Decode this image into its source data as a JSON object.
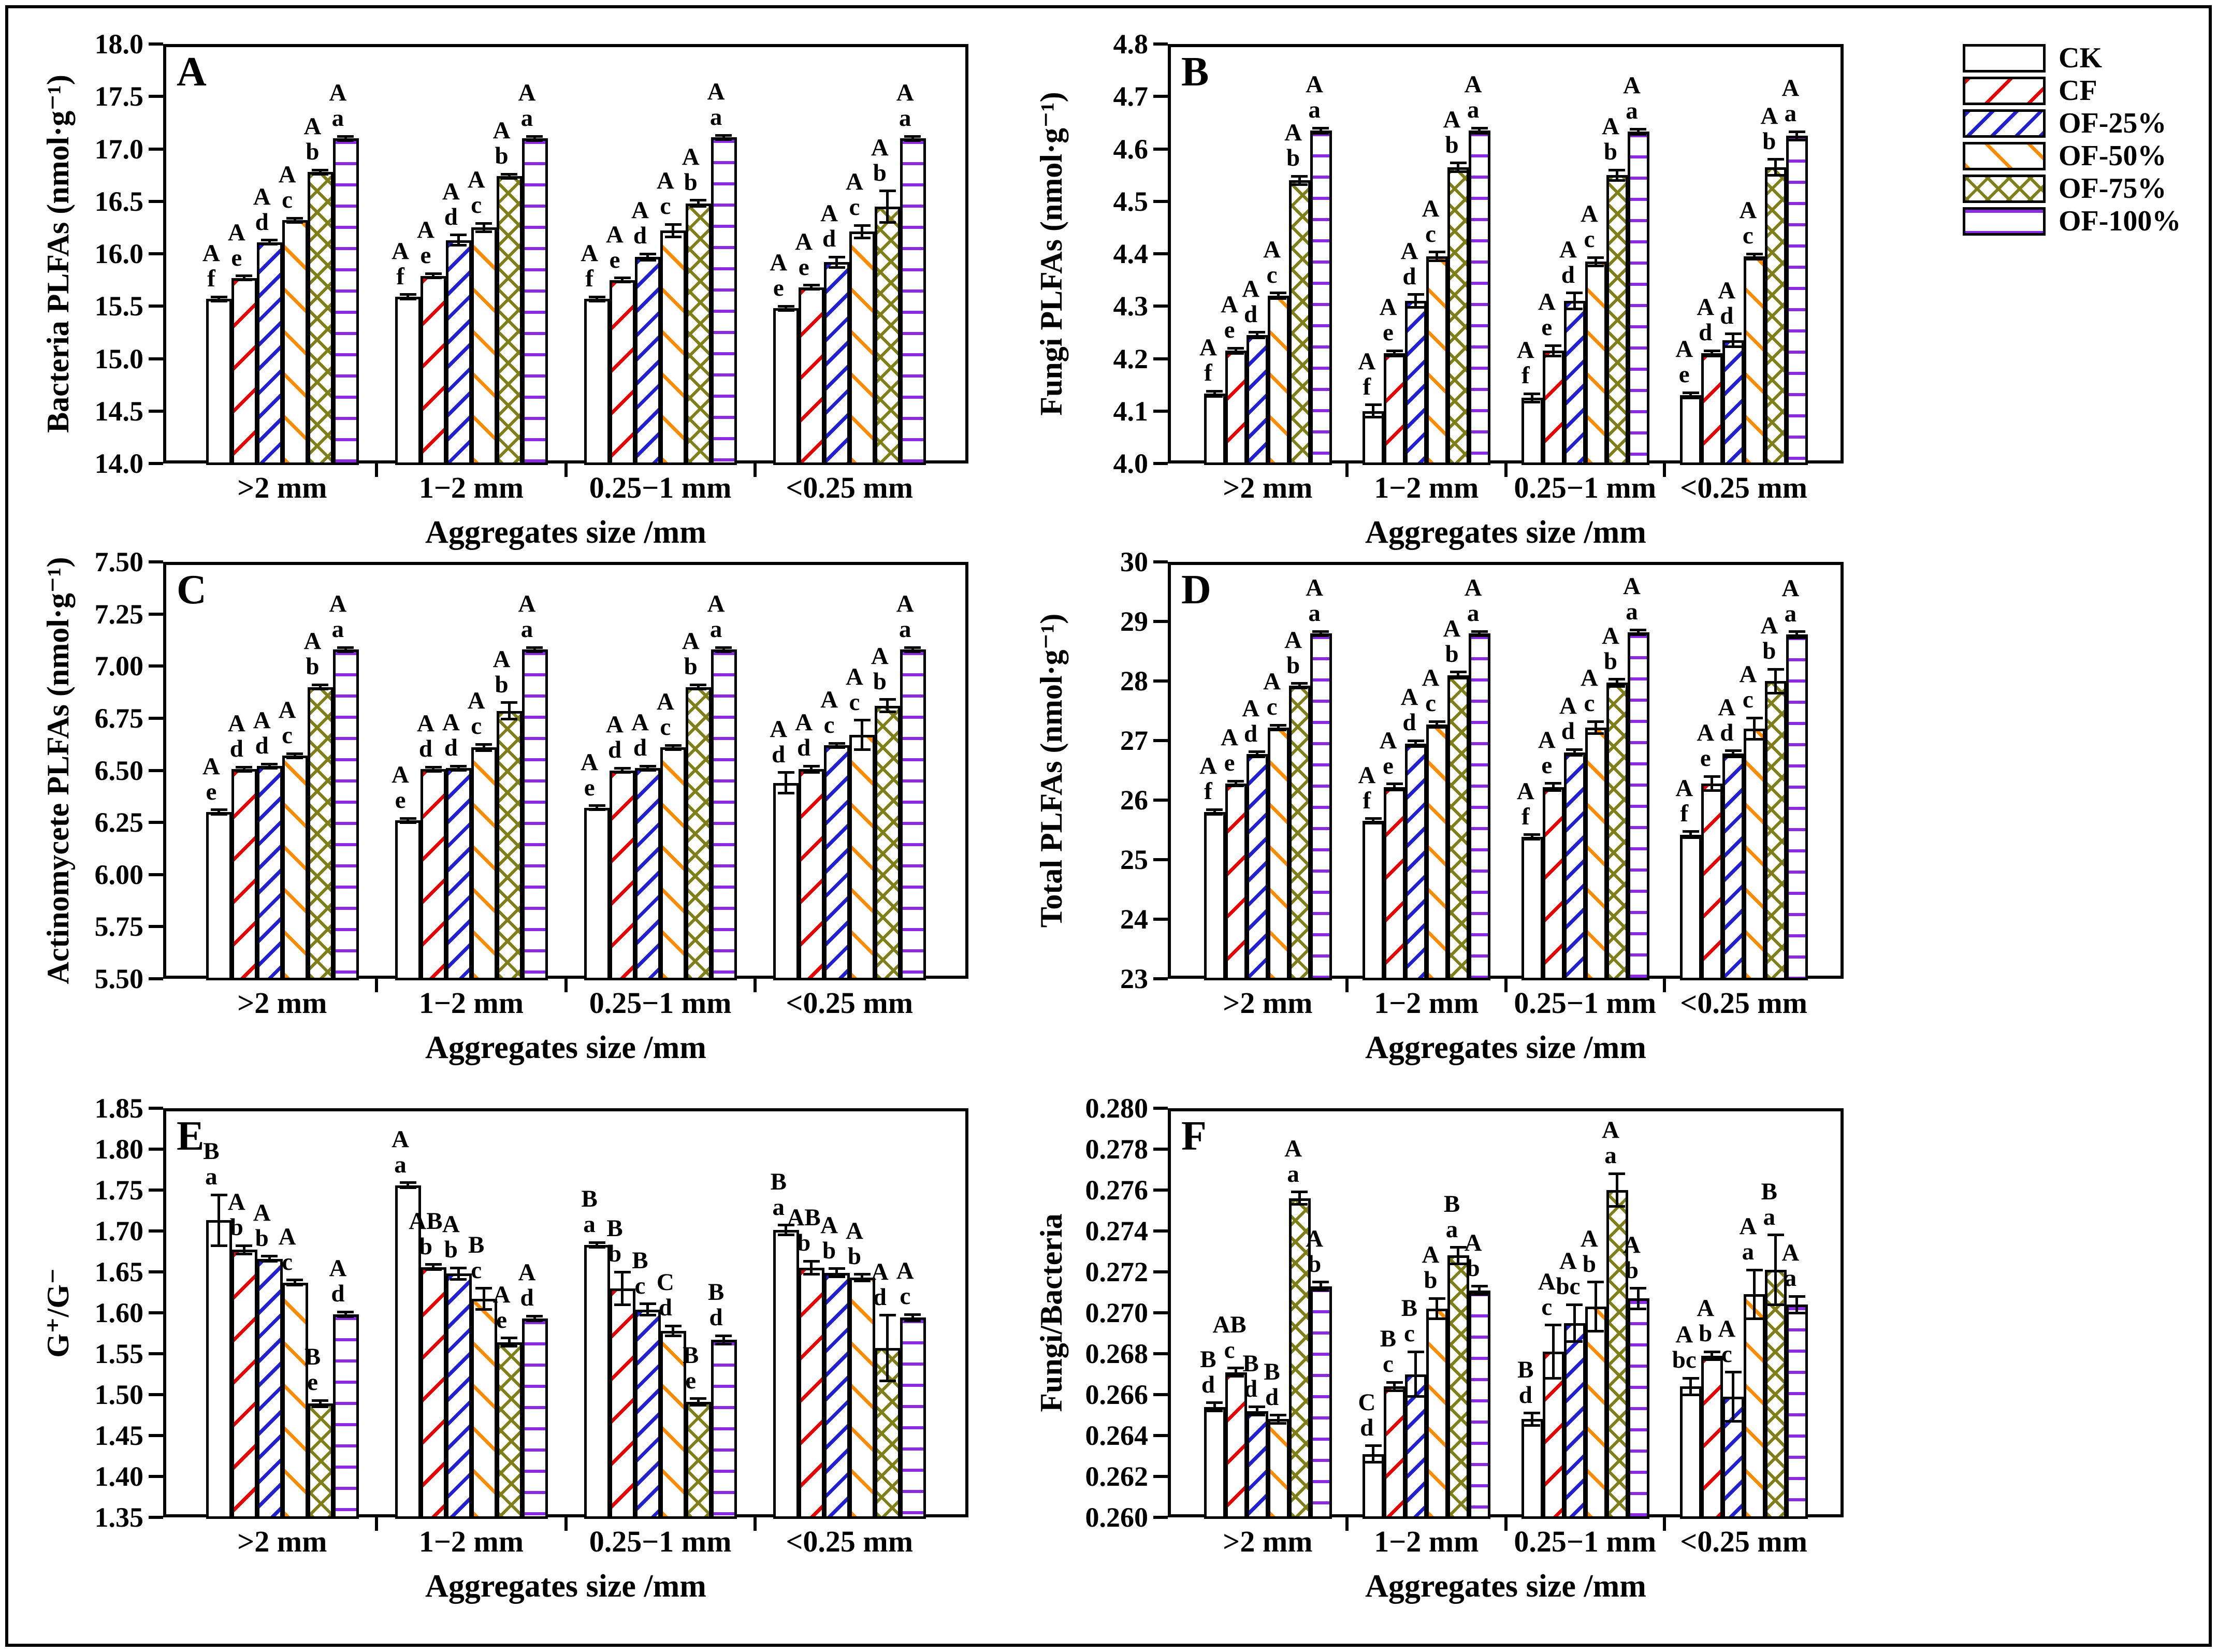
{
  "figure": {
    "xlabel": "Aggregates size /mm",
    "categories": [
      ">2 mm",
      "1−2 mm",
      "0.25−1 mm",
      "<0.25 mm"
    ],
    "background": "#ffffff",
    "border_color": "#000000"
  },
  "legend": {
    "items": [
      {
        "label": "CK",
        "pattern": "plain",
        "color": "#000000"
      },
      {
        "label": "CF",
        "pattern": "diag-up",
        "color": "#e60000"
      },
      {
        "label": "OF-25%",
        "pattern": "diag-up-dense",
        "color": "#2020d0"
      },
      {
        "label": "OF-50%",
        "pattern": "diag-down",
        "color": "#ff8c00"
      },
      {
        "label": "OF-75%",
        "pattern": "crosshatch",
        "color": "#7f7f1a"
      },
      {
        "label": "OF-100%",
        "pattern": "hlines",
        "color": "#8a2be2"
      }
    ]
  },
  "chart_data": [
    {
      "type": "bar",
      "title": "A",
      "ylabel": "Bacteria PLFAs (nmol·g⁻¹)",
      "ylim": [
        14.0,
        18.0
      ],
      "yticks": [
        "14.0",
        "14.5",
        "15.0",
        "15.5",
        "16.0",
        "16.5",
        "17.0",
        "17.5",
        "18.0"
      ],
      "series": [
        {
          "name": "CK",
          "values": [
            15.57,
            15.59,
            15.57,
            15.48
          ],
          "errors": [
            0.02,
            0.02,
            0.02,
            0.02
          ],
          "sig": [
            "A f",
            "A f",
            "A f",
            "A e"
          ]
        },
        {
          "name": "CF",
          "values": [
            15.77,
            15.79,
            15.75,
            15.68
          ],
          "errors": [
            0.02,
            0.02,
            0.02,
            0.02
          ],
          "sig": [
            "A e",
            "A e",
            "A e",
            "A e"
          ]
        },
        {
          "name": "OF-25%",
          "values": [
            16.11,
            16.13,
            15.97,
            15.92
          ],
          "errors": [
            0.02,
            0.05,
            0.03,
            0.05
          ],
          "sig": [
            "A d",
            "A d",
            "A d",
            "A d"
          ]
        },
        {
          "name": "OF-50%",
          "values": [
            16.32,
            16.25,
            16.22,
            16.21
          ],
          "errors": [
            0.02,
            0.04,
            0.06,
            0.06
          ],
          "sig": [
            "A c",
            "A c",
            "A c",
            "A c"
          ]
        },
        {
          "name": "OF-75%",
          "values": [
            16.78,
            16.74,
            16.48,
            16.45
          ],
          "errors": [
            0.02,
            0.02,
            0.03,
            0.15
          ],
          "sig": [
            "A b",
            "A b",
            "A b",
            "A b"
          ]
        },
        {
          "name": "OF-100%",
          "values": [
            17.1,
            17.1,
            17.11,
            17.1
          ],
          "errors": [
            0.01,
            0.01,
            0.01,
            0.01
          ],
          "sig": [
            "A a",
            "A a",
            "A a",
            "A a"
          ]
        }
      ]
    },
    {
      "type": "bar",
      "title": "B",
      "ylabel": "Fungi PLFAs (nmol·g⁻¹)",
      "ylim": [
        4.0,
        4.8
      ],
      "yticks": [
        "4.0",
        "4.1",
        "4.2",
        "4.3",
        "4.4",
        "4.5",
        "4.6",
        "4.7",
        "4.8"
      ],
      "series": [
        {
          "name": "CK",
          "values": [
            4.133,
            4.1,
            4.125,
            4.13
          ],
          "errors": [
            0.005,
            0.012,
            0.008,
            0.005
          ],
          "sig": [
            "A f",
            "A f",
            "A f",
            "A e"
          ]
        },
        {
          "name": "CF",
          "values": [
            4.215,
            4.21,
            4.215,
            4.21
          ],
          "errors": [
            0.005,
            0.005,
            0.01,
            0.005
          ],
          "sig": [
            "A e",
            "A e",
            "A e",
            "A d"
          ]
        },
        {
          "name": "OF-25%",
          "values": [
            4.245,
            4.31,
            4.31,
            4.235
          ],
          "errors": [
            0.005,
            0.012,
            0.015,
            0.012
          ],
          "sig": [
            "A d",
            "A d",
            "A d",
            "A d"
          ]
        },
        {
          "name": "OF-50%",
          "values": [
            4.32,
            4.395,
            4.385,
            4.395
          ],
          "errors": [
            0.005,
            0.008,
            0.008,
            0.005
          ],
          "sig": [
            "A c",
            "A c",
            "A c",
            "A c"
          ]
        },
        {
          "name": "OF-75%",
          "values": [
            4.54,
            4.565,
            4.55,
            4.565
          ],
          "errors": [
            0.008,
            0.008,
            0.01,
            0.015
          ],
          "sig": [
            "A b",
            "A b",
            "A b",
            "A b"
          ]
        },
        {
          "name": "OF-100%",
          "values": [
            4.635,
            4.635,
            4.633,
            4.625
          ],
          "errors": [
            0.005,
            0.005,
            0.005,
            0.008
          ],
          "sig": [
            "A a",
            "A a",
            "A a",
            "A a"
          ]
        }
      ]
    },
    {
      "type": "bar",
      "title": "C",
      "ylabel": "Actinomycete PLFAs (nmol·g⁻¹)",
      "ylim": [
        5.5,
        7.5
      ],
      "yticks": [
        "5.50",
        "5.75",
        "6.00",
        "6.25",
        "6.50",
        "6.75",
        "7.00",
        "7.25",
        "7.50"
      ],
      "series": [
        {
          "name": "CK",
          "values": [
            6.3,
            6.26,
            6.32,
            6.44
          ],
          "errors": [
            0.01,
            0.01,
            0.01,
            0.05
          ],
          "sig": [
            "A e",
            "A e",
            "A e",
            "A d"
          ]
        },
        {
          "name": "CF",
          "values": [
            6.505,
            6.505,
            6.5,
            6.505
          ],
          "errors": [
            0.01,
            0.01,
            0.01,
            0.015
          ],
          "sig": [
            "A d",
            "A d",
            "A d",
            "A d"
          ]
        },
        {
          "name": "OF-25%",
          "values": [
            6.52,
            6.51,
            6.51,
            6.62
          ],
          "errors": [
            0.01,
            0.01,
            0.01,
            0.01
          ],
          "sig": [
            "A d",
            "A d",
            "A d",
            "A c"
          ]
        },
        {
          "name": "OF-50%",
          "values": [
            6.57,
            6.61,
            6.61,
            6.67
          ],
          "errors": [
            0.01,
            0.015,
            0.01,
            0.07
          ],
          "sig": [
            "A c",
            "A c",
            "A c",
            "A c"
          ]
        },
        {
          "name": "OF-75%",
          "values": [
            6.9,
            6.785,
            6.9,
            6.81
          ],
          "errors": [
            0.01,
            0.04,
            0.01,
            0.03
          ],
          "sig": [
            "A b",
            "A b",
            "A b",
            "A b"
          ]
        },
        {
          "name": "OF-100%",
          "values": [
            7.08,
            7.08,
            7.08,
            7.08
          ],
          "errors": [
            0.01,
            0.01,
            0.01,
            0.01
          ],
          "sig": [
            "A a",
            "A a",
            "A a",
            "A a"
          ]
        }
      ]
    },
    {
      "type": "bar",
      "title": "D",
      "ylabel": "Total PLFAs (nmol·g⁻¹)",
      "ylim": [
        23,
        30
      ],
      "yticks": [
        "23",
        "24",
        "25",
        "26",
        "27",
        "28",
        "29",
        "30"
      ],
      "series": [
        {
          "name": "CK",
          "values": [
            25.8,
            25.65,
            25.38,
            25.42
          ],
          "errors": [
            0.04,
            0.04,
            0.04,
            0.05
          ],
          "sig": [
            "A f",
            "A f",
            "A f",
            "A f"
          ]
        },
        {
          "name": "CF",
          "values": [
            26.28,
            26.22,
            26.22,
            26.28
          ],
          "errors": [
            0.04,
            0.05,
            0.06,
            0.12
          ],
          "sig": [
            "A e",
            "A e",
            "A e",
            "A e"
          ]
        },
        {
          "name": "OF-25%",
          "values": [
            26.77,
            26.95,
            26.8,
            26.78
          ],
          "errors": [
            0.04,
            0.05,
            0.05,
            0.05
          ],
          "sig": [
            "A d",
            "A d",
            "A d",
            "A d"
          ]
        },
        {
          "name": "OF-50%",
          "values": [
            27.22,
            27.27,
            27.22,
            27.2
          ],
          "errors": [
            0.04,
            0.05,
            0.1,
            0.18
          ],
          "sig": [
            "A c",
            "A c",
            "A c",
            "A c"
          ]
        },
        {
          "name": "OF-75%",
          "values": [
            27.92,
            28.1,
            27.97,
            28.0
          ],
          "errors": [
            0.04,
            0.05,
            0.06,
            0.2
          ],
          "sig": [
            "A b",
            "A b",
            "A b",
            "A b"
          ]
        },
        {
          "name": "OF-100%",
          "values": [
            28.8,
            28.8,
            28.82,
            28.78
          ],
          "errors": [
            0.03,
            0.03,
            0.04,
            0.05
          ],
          "sig": [
            "A a",
            "A a",
            "A a",
            "A a"
          ]
        }
      ]
    },
    {
      "type": "bar",
      "title": "E",
      "ylabel": "G⁺/G⁻",
      "ylim": [
        1.35,
        1.85
      ],
      "yticks": [
        "1.35",
        "1.40",
        "1.45",
        "1.50",
        "1.55",
        "1.60",
        "1.65",
        "1.70",
        "1.75",
        "1.80",
        "1.85"
      ],
      "series": [
        {
          "name": "CK",
          "values": [
            1.713,
            1.756,
            1.683,
            1.701
          ],
          "errors": [
            0.031,
            0.003,
            0.003,
            0.006
          ],
          "sig": [
            "B a",
            "A a",
            "B a",
            "B a"
          ]
        },
        {
          "name": "CF",
          "values": [
            1.677,
            1.656,
            1.63,
            1.655
          ],
          "errors": [
            0.005,
            0.003,
            0.02,
            0.008
          ],
          "sig": [
            "A b",
            "AB b",
            "B b",
            "AB b"
          ]
        },
        {
          "name": "OF-25%",
          "values": [
            1.666,
            1.648,
            1.604,
            1.649
          ],
          "errors": [
            0.003,
            0.007,
            0.007,
            0.005
          ],
          "sig": [
            "A b",
            "A b",
            "B c",
            "A b"
          ]
        },
        {
          "name": "OF-50%",
          "values": [
            1.637,
            1.617,
            1.578,
            1.643
          ],
          "errors": [
            0.003,
            0.013,
            0.006,
            0.004
          ],
          "sig": [
            "A c",
            "B c",
            "C d",
            "A b"
          ]
        },
        {
          "name": "OF-75%",
          "values": [
            1.489,
            1.564,
            1.491,
            1.557
          ],
          "errors": [
            0.004,
            0.005,
            0.004,
            0.04
          ],
          "sig": [
            "B e",
            "A e",
            "B e",
            "A d"
          ]
        },
        {
          "name": "OF-100%",
          "values": [
            1.598,
            1.593,
            1.567,
            1.594
          ],
          "errors": [
            0.003,
            0.003,
            0.005,
            0.004
          ],
          "sig": [
            "A d",
            "A d",
            "B d",
            "A c"
          ]
        }
      ]
    },
    {
      "type": "bar",
      "title": "F",
      "ylabel": "Fungi/Bacteria",
      "ylim": [
        0.26,
        0.28
      ],
      "yticks": [
        "0.260",
        "0.262",
        "0.264",
        "0.266",
        "0.268",
        "0.270",
        "0.272",
        "0.274",
        "0.276",
        "0.278",
        "0.280"
      ],
      "series": [
        {
          "name": "CK",
          "values": [
            0.2654,
            0.2631,
            0.2648,
            0.2664
          ],
          "errors": [
            0.0002,
            0.0004,
            0.0003,
            0.0004
          ],
          "sig": [
            "B d",
            "C d",
            "B d",
            "A bc"
          ]
        },
        {
          "name": "CF",
          "values": [
            0.2671,
            0.2664,
            0.2681,
            0.2679
          ],
          "errors": [
            0.0002,
            0.0002,
            0.0013,
            0.0002
          ],
          "sig": [
            "AB c",
            "B c",
            "A c",
            "A b"
          ]
        },
        {
          "name": "OF-25%",
          "values": [
            0.2652,
            0.267,
            0.2695,
            0.2659
          ],
          "errors": [
            0.0002,
            0.0011,
            0.0009,
            0.0012
          ],
          "sig": [
            "B d",
            "B c",
            "A bc",
            "A c"
          ]
        },
        {
          "name": "OF-50%",
          "values": [
            0.2648,
            0.2702,
            0.2703,
            0.2709
          ],
          "errors": [
            0.0002,
            0.0005,
            0.0012,
            0.0012
          ],
          "sig": [
            "B d",
            "A b",
            "A b",
            "A a"
          ]
        },
        {
          "name": "OF-75%",
          "values": [
            0.2756,
            0.2728,
            0.276,
            0.2721
          ],
          "errors": [
            0.0003,
            0.0004,
            0.0008,
            0.0017
          ],
          "sig": [
            "A a",
            "B a",
            "A a",
            "B a"
          ]
        },
        {
          "name": "OF-100%",
          "values": [
            0.2713,
            0.2711,
            0.2707,
            0.2704
          ],
          "errors": [
            0.0002,
            0.0002,
            0.0005,
            0.0004
          ],
          "sig": [
            "A b",
            "A b",
            "A b",
            "A a"
          ]
        }
      ]
    }
  ]
}
